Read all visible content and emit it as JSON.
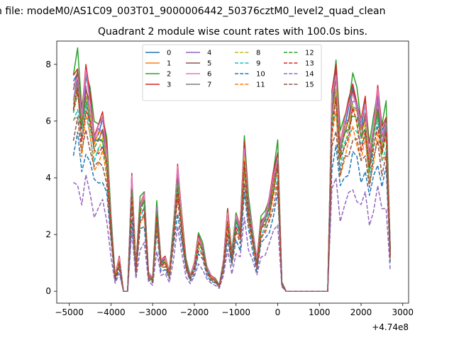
{
  "chart_data": {
    "type": "line",
    "suptitle": "n file: modeM0/AS1C09_003T01_9000006442_50376cztM0_level2_quad_clean",
    "title": "Quadrant 2 module wise count rates with 100.0s bins.",
    "xlabel": "",
    "ylabel": "",
    "x_offset_label": "+4.74e8",
    "xlim": [
      -5300,
      3140
    ],
    "ylim": [
      -0.42,
      8.82
    ],
    "xticks": [
      -5000,
      -4000,
      -3000,
      -2000,
      -1000,
      0,
      1000,
      2000,
      3000
    ],
    "xtick_labels": [
      "−5000",
      "−4000",
      "−3000",
      "−2000",
      "−1000",
      "0",
      "1000",
      "2000",
      "3000"
    ],
    "yticks": [
      0,
      2,
      4,
      6,
      8
    ],
    "ytick_labels": [
      "0",
      "2",
      "4",
      "6",
      "8"
    ],
    "grid": false,
    "legend_position": "top-center",
    "x": [
      -4900,
      -4800,
      -4700,
      -4600,
      -4500,
      -4400,
      -4300,
      -4200,
      -4100,
      -4000,
      -3900,
      -3800,
      -3700,
      -3600,
      -3500,
      -3400,
      -3300,
      -3200,
      -3100,
      -3000,
      -2900,
      -2800,
      -2700,
      -2600,
      -2500,
      -2400,
      -2300,
      -2200,
      -2100,
      -2000,
      -1900,
      -1800,
      -1700,
      -1600,
      -1500,
      -1400,
      -1300,
      -1200,
      -1100,
      -1000,
      -900,
      -800,
      -700,
      -600,
      -500,
      -400,
      -300,
      -200,
      -100,
      0,
      100,
      200,
      300,
      400,
      500,
      600,
      700,
      800,
      900,
      1000,
      1100,
      1200,
      1300,
      1400,
      1500,
      1600,
      1700,
      1800,
      1900,
      2000,
      2100,
      2200,
      2300,
      2400,
      2500,
      2600,
      2700
    ],
    "base_profile": [
      6.8,
      7.4,
      5.8,
      7.1,
      6.3,
      5.2,
      5.4,
      5.6,
      4.7,
      2.4,
      0.5,
      1.1,
      0.0,
      0.0,
      3.7,
      0.8,
      2.9,
      3.2,
      0.6,
      0.4,
      2.8,
      1.0,
      1.1,
      0.6,
      2.1,
      4.0,
      2.4,
      1.0,
      0.5,
      0.9,
      1.8,
      1.5,
      0.8,
      0.5,
      0.4,
      0.2,
      1.0,
      2.6,
      1.2,
      2.5,
      2.1,
      4.8,
      2.9,
      2.0,
      1.0,
      2.3,
      2.5,
      3.0,
      3.8,
      4.6,
      0.3,
      0.0,
      0.0,
      0.0,
      0.0,
      0.0,
      0.0,
      0.0,
      0.0,
      0.0,
      0.0,
      0.0,
      6.3,
      7.2,
      4.9,
      5.6,
      6.0,
      6.7,
      6.3,
      5.5,
      6.1,
      4.5,
      5.5,
      6.5,
      5.2,
      5.8,
      1.4
    ],
    "series": [
      {
        "name": "0",
        "color": "#1f77b4",
        "dash": "solid",
        "scale": 1.05
      },
      {
        "name": "1",
        "color": "#ff7f0e",
        "dash": "solid",
        "scale": 1.0
      },
      {
        "name": "2",
        "color": "#2ca02c",
        "dash": "solid",
        "scale": 1.12
      },
      {
        "name": "3",
        "color": "#d62728",
        "dash": "solid",
        "scale": 1.09
      },
      {
        "name": "4",
        "color": "#9467bd",
        "dash": "solid",
        "scale": 1.03
      },
      {
        "name": "5",
        "color": "#8c564b",
        "dash": "solid",
        "scale": 1.02
      },
      {
        "name": "6",
        "color": "#e377c2",
        "dash": "solid",
        "scale": 1.06
      },
      {
        "name": "7",
        "color": "#7f7f7f",
        "dash": "solid",
        "scale": 0.98
      },
      {
        "name": "8",
        "color": "#bcbd22",
        "dash": "dashed",
        "scale": 0.95
      },
      {
        "name": "9",
        "color": "#17becf",
        "dash": "dashed",
        "scale": 0.9
      },
      {
        "name": "10",
        "color": "#1f77b4",
        "dash": "dashed",
        "scale": 0.72
      },
      {
        "name": "11",
        "color": "#ff7f0e",
        "dash": "dashed",
        "scale": 0.85
      },
      {
        "name": "12",
        "color": "#2ca02c",
        "dash": "dashed",
        "scale": 0.96
      },
      {
        "name": "13",
        "color": "#d62728",
        "dash": "dashed",
        "scale": 0.93
      },
      {
        "name": "14",
        "color": "#9467bd",
        "dash": "dashed",
        "scale": 0.54
      },
      {
        "name": "15",
        "color": "#8c564b",
        "dash": "dashed",
        "scale": 0.82
      }
    ]
  }
}
